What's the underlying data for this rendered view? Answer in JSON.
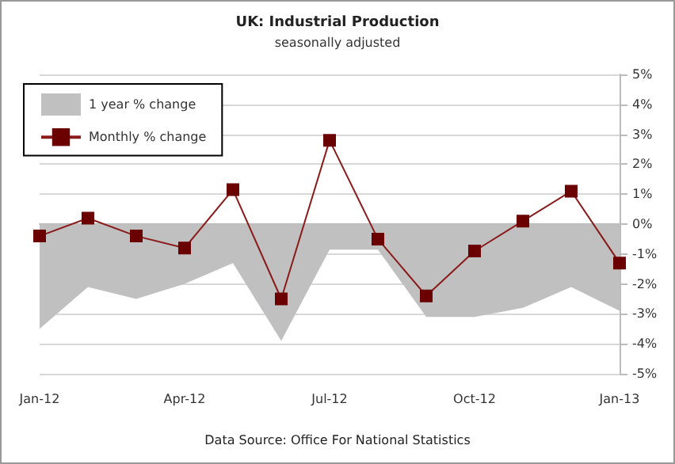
{
  "chart_data": {
    "type": "line",
    "title": "UK: Industrial Production",
    "subtitle": "seasonally adjusted",
    "categories": [
      "Jan-12",
      null,
      null,
      "Apr-12",
      null,
      null,
      "Jul-12",
      null,
      null,
      "Oct-12",
      null,
      null,
      "Jan-13"
    ],
    "series": [
      {
        "name": "1 year % change",
        "type": "area",
        "color": "#c0c0c0",
        "values": [
          -3.5,
          -2.1,
          -2.5,
          -2.0,
          -1.3,
          -3.9,
          -0.85,
          -0.85,
          -3.1,
          -3.1,
          -2.8,
          -2.1,
          -2.9
        ]
      },
      {
        "name": "Monthly % change",
        "color": "#8b1a1a",
        "marker": "square",
        "values": [
          -0.4,
          0.2,
          -0.4,
          -0.8,
          1.15,
          -2.5,
          2.8,
          -0.5,
          -2.4,
          -0.9,
          0.1,
          1.1,
          -1.3
        ]
      }
    ],
    "ylim": [
      -5,
      5
    ],
    "yticks": [
      {
        "value": -5,
        "label": "-5%"
      },
      {
        "value": -4,
        "label": "-4%"
      },
      {
        "value": -3,
        "label": "-3%"
      },
      {
        "value": -2,
        "label": "-2%"
      },
      {
        "value": -1,
        "label": "-1%"
      },
      {
        "value": 0,
        "label": "0%"
      },
      {
        "value": 1,
        "label": "1%"
      },
      {
        "value": 2,
        "label": "2%"
      },
      {
        "value": 3,
        "label": "3%"
      },
      {
        "value": 4,
        "label": "4%"
      },
      {
        "value": 5,
        "label": "5%"
      }
    ],
    "grid": "y",
    "legend": "top left",
    "annotations": [
      "Data Source: Office For National Statistics"
    ]
  }
}
